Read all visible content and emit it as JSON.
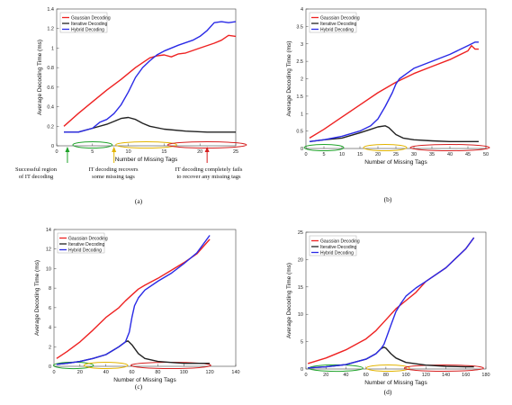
{
  "colors": {
    "gaussian": "#ee2222",
    "iterative": "#222222",
    "hybrid": "#2a2ae6",
    "region_green": "#1fa32a",
    "region_yellow": "#e2b400",
    "region_red": "#d62020",
    "arrow_green": "#1fa32a",
    "arrow_yellow": "#e2b400",
    "arrow_red": "#d62020"
  },
  "annotations": {
    "a_green": [
      "Successful region",
      "of IT decoding"
    ],
    "a_yellow": [
      "IT decoding recovers",
      "some missing tags"
    ],
    "a_red": [
      "IT decoding completely fails",
      "to recover any missing tags"
    ]
  },
  "chart_data": [
    {
      "type": "line",
      "panel_label": "(a)",
      "xlabel": "Number of Missing Tags",
      "ylabel": "Average Decoding Time (ms)",
      "xlim": [
        0,
        25
      ],
      "ylim": [
        0,
        1.4
      ],
      "xticks": [
        0,
        5,
        10,
        15,
        20,
        25
      ],
      "yticks": [
        0,
        0.2,
        0.4,
        0.6,
        0.8,
        1,
        1.2,
        1.4
      ],
      "legend_position": "top-left",
      "series": [
        {
          "name": "Gaussian Decoding",
          "color_key": "gaussian",
          "x": [
            1,
            3,
            5,
            7,
            9,
            11,
            12,
            13,
            14,
            15,
            16,
            17,
            18,
            20,
            22,
            23,
            24,
            25
          ],
          "y": [
            0.2,
            0.33,
            0.45,
            0.57,
            0.68,
            0.8,
            0.85,
            0.9,
            0.92,
            0.93,
            0.91,
            0.94,
            0.95,
            1.0,
            1.05,
            1.08,
            1.13,
            1.12
          ]
        },
        {
          "name": "Iterative Decoding",
          "color_key": "iterative",
          "x": [
            1,
            3,
            5,
            7,
            8,
            9,
            10,
            11,
            12,
            13,
            15,
            18,
            21,
            25
          ],
          "y": [
            0.14,
            0.14,
            0.18,
            0.22,
            0.25,
            0.28,
            0.29,
            0.27,
            0.23,
            0.2,
            0.17,
            0.15,
            0.14,
            0.14
          ]
        },
        {
          "name": "Hybrid Decoding",
          "color_key": "hybrid",
          "x": [
            1,
            3,
            5,
            6,
            7,
            8,
            9,
            10,
            11,
            12,
            13,
            14,
            15,
            17,
            19,
            20,
            21,
            22,
            23,
            24,
            25
          ],
          "y": [
            0.14,
            0.14,
            0.18,
            0.24,
            0.27,
            0.33,
            0.42,
            0.55,
            0.7,
            0.8,
            0.87,
            0.93,
            0.97,
            1.03,
            1.08,
            1.12,
            1.18,
            1.26,
            1.27,
            1.26,
            1.27
          ]
        }
      ],
      "legend": [
        "Gaussian Decoding",
        "Iterative Decoding",
        "Hybrid Decoding"
      ]
    },
    {
      "type": "line",
      "panel_label": "(b)",
      "xlabel": "Number of Missing Tags",
      "ylabel": "Average Decoding Time (ms)",
      "xlim": [
        0,
        50
      ],
      "ylim": [
        0,
        4
      ],
      "xticks": [
        0,
        5,
        10,
        15,
        20,
        25,
        30,
        35,
        40,
        45,
        50
      ],
      "yticks": [
        0,
        0.5,
        1,
        1.5,
        2,
        2.5,
        3,
        3.5,
        4
      ],
      "legend_position": "top-left",
      "series": [
        {
          "name": "Gaussian Decoding",
          "color_key": "gaussian",
          "x": [
            1,
            5,
            10,
            15,
            20,
            25,
            30,
            35,
            40,
            45,
            46,
            47,
            48
          ],
          "y": [
            0.3,
            0.55,
            0.9,
            1.25,
            1.6,
            1.9,
            2.15,
            2.35,
            2.55,
            2.8,
            2.95,
            2.85,
            2.85
          ]
        },
        {
          "name": "Iterative Decoding",
          "color_key": "iterative",
          "x": [
            1,
            5,
            10,
            15,
            18,
            20,
            22,
            23,
            24,
            25,
            27,
            30,
            35,
            40,
            48
          ],
          "y": [
            0.2,
            0.25,
            0.3,
            0.45,
            0.55,
            0.62,
            0.65,
            0.6,
            0.5,
            0.4,
            0.3,
            0.25,
            0.22,
            0.2,
            0.2
          ]
        },
        {
          "name": "Hybrid Decoding",
          "color_key": "hybrid",
          "x": [
            1,
            5,
            10,
            15,
            18,
            20,
            22,
            24,
            25,
            26,
            28,
            30,
            35,
            40,
            45,
            47,
            48
          ],
          "y": [
            0.2,
            0.25,
            0.35,
            0.5,
            0.65,
            0.85,
            1.2,
            1.6,
            1.85,
            2.0,
            2.15,
            2.3,
            2.5,
            2.7,
            2.95,
            3.05,
            3.05
          ]
        }
      ],
      "legend": [
        "Gaussian Decoding",
        "Iterative Decoding",
        "Hybrid Decoding"
      ]
    },
    {
      "type": "line",
      "panel_label": "(c)",
      "xlabel": "Number of Missing Tags",
      "ylabel": "Average Decoding Time (ms)",
      "xlim": [
        0,
        140
      ],
      "ylim": [
        0,
        14
      ],
      "xticks": [
        0,
        20,
        40,
        60,
        80,
        100,
        120,
        140
      ],
      "yticks": [
        0,
        2,
        4,
        6,
        8,
        10,
        12,
        14
      ],
      "legend_position": "top-left",
      "series": [
        {
          "name": "Gaussian Decoding",
          "color_key": "gaussian",
          "x": [
            2,
            10,
            20,
            30,
            40,
            50,
            55,
            60,
            65,
            70,
            80,
            90,
            100,
            110,
            120
          ],
          "y": [
            0.8,
            1.5,
            2.5,
            3.7,
            5.0,
            6.0,
            6.7,
            7.3,
            7.9,
            8.3,
            9.0,
            9.8,
            10.6,
            11.5,
            13.0
          ]
        },
        {
          "name": "Iterative Decoding",
          "color_key": "iterative",
          "x": [
            2,
            10,
            20,
            30,
            40,
            50,
            55,
            57,
            60,
            65,
            70,
            80,
            90,
            100,
            110,
            120
          ],
          "y": [
            0.2,
            0.3,
            0.5,
            0.8,
            1.2,
            2.0,
            2.5,
            2.6,
            2.2,
            1.3,
            0.8,
            0.5,
            0.4,
            0.3,
            0.3,
            0.3
          ]
        },
        {
          "name": "Hybrid Decoding",
          "color_key": "hybrid",
          "x": [
            2,
            10,
            20,
            30,
            40,
            50,
            55,
            58,
            60,
            62,
            65,
            70,
            80,
            90,
            100,
            110,
            120
          ],
          "y": [
            0.2,
            0.3,
            0.5,
            0.8,
            1.2,
            2.0,
            2.5,
            3.5,
            5.0,
            6.2,
            7.0,
            7.8,
            8.7,
            9.5,
            10.5,
            11.6,
            13.4
          ]
        }
      ],
      "legend": [
        "Gaussian Decoding",
        "Iterative Decoding",
        "Hybrid Decoding"
      ]
    },
    {
      "type": "line",
      "panel_label": "(d)",
      "xlabel": "Number of Missing Tags",
      "ylabel": "Average Decoding Time (ms)",
      "xlim": [
        0,
        180
      ],
      "ylim": [
        0,
        25
      ],
      "xticks": [
        0,
        20,
        40,
        60,
        80,
        100,
        120,
        140,
        160,
        180
      ],
      "yticks": [
        0,
        5,
        10,
        15,
        20,
        25
      ],
      "legend_position": "top-left",
      "series": [
        {
          "name": "Gaussian Decoding",
          "color_key": "gaussian",
          "x": [
            2,
            20,
            40,
            60,
            70,
            80,
            90,
            100,
            110,
            120,
            140,
            160,
            168
          ],
          "y": [
            1.0,
            2.0,
            3.5,
            5.5,
            7.0,
            9.0,
            11.0,
            12.5,
            14.0,
            16.0,
            18.5,
            22.0,
            24.0
          ]
        },
        {
          "name": "Iterative Decoding",
          "color_key": "iterative",
          "x": [
            2,
            20,
            40,
            60,
            70,
            75,
            78,
            80,
            85,
            90,
            100,
            120,
            140,
            160,
            168
          ],
          "y": [
            0.2,
            0.4,
            0.8,
            1.8,
            2.8,
            3.7,
            4.0,
            3.8,
            2.8,
            2.0,
            1.2,
            0.7,
            0.5,
            0.4,
            0.4
          ]
        },
        {
          "name": "Hybrid Decoding",
          "color_key": "hybrid",
          "x": [
            2,
            20,
            40,
            60,
            70,
            75,
            78,
            80,
            85,
            90,
            95,
            100,
            110,
            120,
            140,
            160,
            168
          ],
          "y": [
            0.2,
            0.4,
            0.8,
            1.8,
            2.8,
            3.7,
            4.5,
            5.5,
            8.0,
            10.5,
            12.0,
            13.3,
            14.8,
            16.0,
            18.5,
            22.0,
            24.0
          ]
        }
      ],
      "legend": [
        "Gaussian Decoding",
        "Iterative Decoding",
        "Hybrid Decoding"
      ]
    }
  ]
}
